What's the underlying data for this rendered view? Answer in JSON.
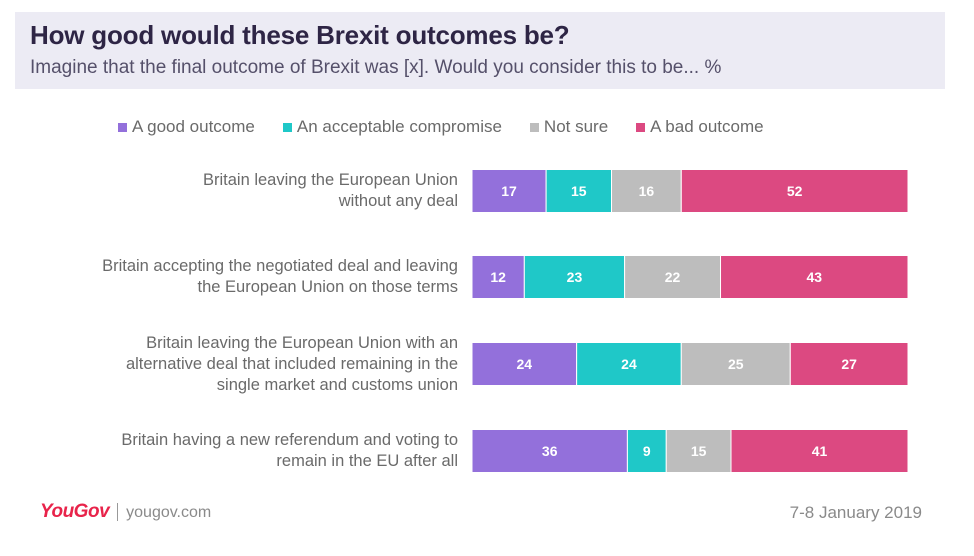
{
  "header": {
    "title": "How good would these Brexit outcomes be?",
    "subtitle": "Imagine that the final outcome of Brexit was [x]. Would you consider this to be... %"
  },
  "chart_data": {
    "type": "bar",
    "orientation": "horizontal",
    "stacked": true,
    "legend_position": "top",
    "grid": false,
    "categories": [
      [
        "Britain leaving the European Union",
        "without any deal"
      ],
      [
        "Britain accepting the negotiated deal and leaving",
        "the European Union on those terms"
      ],
      [
        "Britain leaving the European Union with an",
        "alternative deal that included remaining in the",
        "single market and customs union"
      ],
      [
        "Britain having a new referendum and voting to",
        "remain in the EU after all"
      ]
    ],
    "series": [
      {
        "name": "A good outcome",
        "color": "#9370db",
        "values": [
          17,
          12,
          24,
          36
        ]
      },
      {
        "name": "An acceptable compromise",
        "color": "#1fc8c8",
        "values": [
          15,
          23,
          24,
          9
        ]
      },
      {
        "name": "Not sure",
        "color": "#bdbdbd",
        "values": [
          16,
          22,
          25,
          15
        ]
      },
      {
        "name": "A bad outcome",
        "color": "#dc4981",
        "values": [
          52,
          43,
          27,
          41
        ]
      }
    ]
  },
  "footer": {
    "logo": "YouGov",
    "site": "yougov.com",
    "date": "7-8 January 2019"
  }
}
